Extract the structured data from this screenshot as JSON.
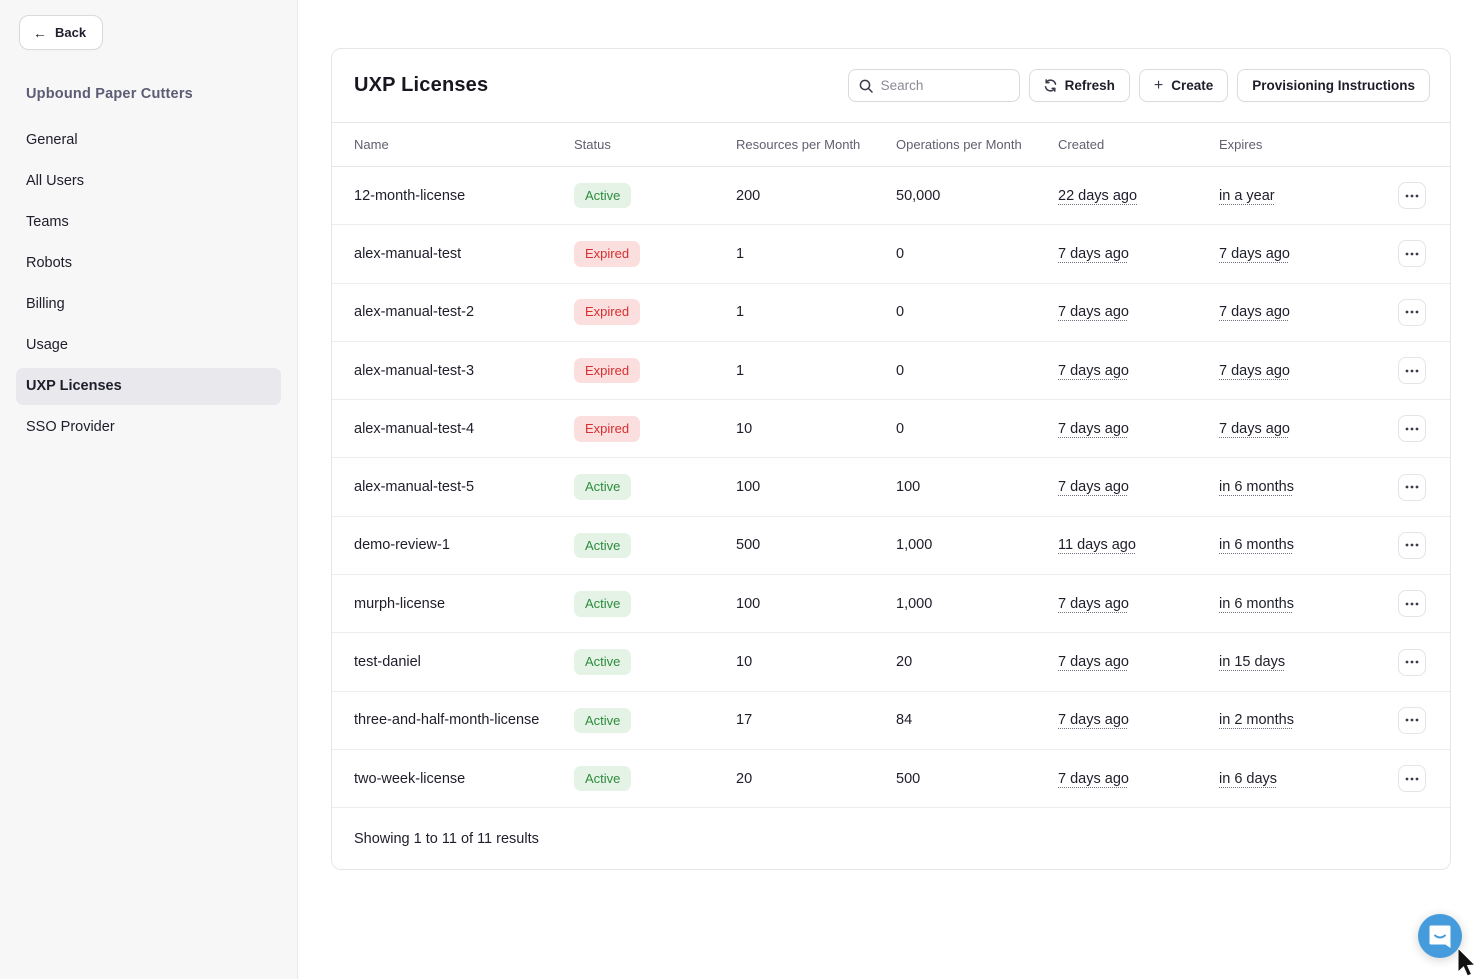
{
  "sidebar": {
    "back_label": "Back",
    "org_title": "Upbound Paper Cutters",
    "items": [
      {
        "label": "General",
        "active": false
      },
      {
        "label": "All Users",
        "active": false
      },
      {
        "label": "Teams",
        "active": false
      },
      {
        "label": "Robots",
        "active": false
      },
      {
        "label": "Billing",
        "active": false
      },
      {
        "label": "Usage",
        "active": false
      },
      {
        "label": "UXP Licenses",
        "active": true
      },
      {
        "label": "SSO Provider",
        "active": false
      }
    ]
  },
  "main": {
    "title": "UXP Licenses",
    "search_placeholder": "Search",
    "refresh_label": "Refresh",
    "create_label": "Create",
    "provisioning_label": "Provisioning Instructions",
    "table": {
      "columns": [
        "Name",
        "Status",
        "Resources per Month",
        "Operations per Month",
        "Created",
        "Expires"
      ],
      "rows": [
        {
          "name": "12-month-license",
          "status": "Active",
          "resources": "200",
          "operations": "50,000",
          "created": "22 days ago",
          "expires": "in a year"
        },
        {
          "name": "alex-manual-test",
          "status": "Expired",
          "resources": "1",
          "operations": "0",
          "created": "7 days ago",
          "expires": "7 days ago"
        },
        {
          "name": "alex-manual-test-2",
          "status": "Expired",
          "resources": "1",
          "operations": "0",
          "created": "7 days ago",
          "expires": "7 days ago"
        },
        {
          "name": "alex-manual-test-3",
          "status": "Expired",
          "resources": "1",
          "operations": "0",
          "created": "7 days ago",
          "expires": "7 days ago"
        },
        {
          "name": "alex-manual-test-4",
          "status": "Expired",
          "resources": "10",
          "operations": "0",
          "created": "7 days ago",
          "expires": "7 days ago"
        },
        {
          "name": "alex-manual-test-5",
          "status": "Active",
          "resources": "100",
          "operations": "100",
          "created": "7 days ago",
          "expires": "in 6 months"
        },
        {
          "name": "demo-review-1",
          "status": "Active",
          "resources": "500",
          "operations": "1,000",
          "created": "11 days ago",
          "expires": "in 6 months"
        },
        {
          "name": "murph-license",
          "status": "Active",
          "resources": "100",
          "operations": "1,000",
          "created": "7 days ago",
          "expires": "in 6 months"
        },
        {
          "name": "test-daniel",
          "status": "Active",
          "resources": "10",
          "operations": "20",
          "created": "7 days ago",
          "expires": "in 15 days"
        },
        {
          "name": "three-and-half-month-license",
          "status": "Active",
          "resources": "17",
          "operations": "84",
          "created": "7 days ago",
          "expires": "in 2 months"
        },
        {
          "name": "two-week-license",
          "status": "Active",
          "resources": "20",
          "operations": "500",
          "created": "7 days ago",
          "expires": "in 6 days"
        }
      ],
      "footer": "Showing 1 to 11 of 11 results"
    }
  },
  "icons": {
    "back": "back-arrow-icon",
    "search": "search-icon",
    "refresh": "refresh-icon",
    "plus": "plus-icon",
    "more": "ellipsis-icon",
    "chat": "chat-bubble-icon"
  },
  "colors": {
    "active_badge_bg": "#e4f3e5",
    "active_badge_text": "#2e8b3e",
    "expired_badge_bg": "#fbdede",
    "expired_badge_text": "#d63031",
    "chat_bubble": "#459bdb",
    "sidebar_bg": "#f7f7f8",
    "org_title_text": "#5c5c74"
  }
}
